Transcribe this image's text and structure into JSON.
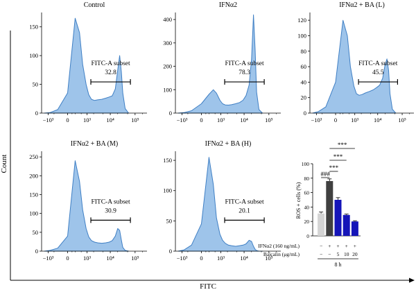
{
  "figure": {
    "y_axis_label": "Count",
    "x_axis_label": "FITC",
    "colors": {
      "histogram_fill": "#9ec4ea",
      "histogram_stroke": "#3f7fc4",
      "bar_control": "#d4d4d4",
      "bar_ifn": "#404040",
      "bar_baicalin": "#1515b8"
    }
  },
  "chart_data": [
    {
      "type": "area",
      "title": "Control",
      "x_scale": "biexponential",
      "x_ticks": [
        "−10³",
        "0",
        "10³",
        "10⁴",
        "10⁵"
      ],
      "y_ticks": [
        "0",
        "50",
        "100",
        "150"
      ],
      "ylim": [
        0,
        175
      ],
      "gate": {
        "label": "FITC-A subset",
        "value": "32.8",
        "x_range": [
          1500,
          65000
        ]
      },
      "x": [
        -1500,
        -800,
        -300,
        0,
        200,
        400,
        600,
        900,
        1200,
        1600,
        2200,
        3000,
        4500,
        6500,
        9000,
        12000,
        16000,
        20000,
        24000,
        28000,
        32000,
        40000,
        55000
      ],
      "y": [
        0,
        1,
        6,
        35,
        165,
        140,
        85,
        50,
        32,
        24,
        22,
        23,
        24,
        26,
        28,
        30,
        42,
        75,
        100,
        72,
        35,
        8,
        0
      ]
    },
    {
      "type": "area",
      "title": "IFNα2",
      "x_scale": "biexponential",
      "x_ticks": [
        "−10³",
        "0",
        "10³",
        "10⁴",
        "10⁵"
      ],
      "y_ticks": [
        "0",
        "100",
        "200",
        "300",
        "400"
      ],
      "ylim": [
        0,
        430
      ],
      "gate": {
        "label": "FITC-A subset",
        "value": "78.3",
        "x_range": [
          1500,
          65000
        ]
      },
      "x": [
        -1500,
        -800,
        -300,
        0,
        200,
        400,
        600,
        900,
        1200,
        1600,
        2200,
        3000,
        4500,
        6500,
        9000,
        12000,
        16000,
        20000,
        24000,
        28000,
        32000,
        40000,
        55000
      ],
      "y": [
        0,
        2,
        10,
        40,
        80,
        100,
        85,
        55,
        40,
        35,
        34,
        36,
        40,
        45,
        55,
        75,
        120,
        230,
        420,
        270,
        90,
        15,
        0
      ]
    },
    {
      "type": "area",
      "title": "IFNα2 + BA (L)",
      "x_scale": "biexponential",
      "x_ticks": [
        "−10³",
        "0",
        "10³",
        "10⁴",
        "10⁵"
      ],
      "y_ticks": [
        "0",
        "20",
        "40",
        "60",
        "80",
        "100",
        "120"
      ],
      "ylim": [
        0,
        130
      ],
      "gate": {
        "label": "FITC-A subset",
        "value": "45.5",
        "x_range": [
          1500,
          65000
        ]
      },
      "x": [
        -1500,
        -800,
        -300,
        0,
        200,
        400,
        600,
        900,
        1200,
        1600,
        2200,
        3000,
        4500,
        6500,
        9000,
        12000,
        16000,
        20000,
        24000,
        28000,
        32000,
        40000,
        55000
      ],
      "y": [
        0,
        2,
        8,
        40,
        120,
        100,
        60,
        35,
        25,
        23,
        24,
        26,
        28,
        30,
        33,
        36,
        45,
        62,
        70,
        55,
        25,
        5,
        0
      ]
    },
    {
      "type": "area",
      "title": "IFNα2 + BA (M)",
      "x_scale": "biexponential",
      "x_ticks": [
        "−10³",
        "0",
        "10³",
        "10⁴",
        "10⁵"
      ],
      "y_ticks": [
        "0",
        "50",
        "100",
        "150",
        "200",
        "250"
      ],
      "ylim": [
        0,
        265
      ],
      "gate": {
        "label": "FITC-A subset",
        "value": "30.9",
        "x_range": [
          1500,
          65000
        ]
      },
      "x": [
        -1500,
        -800,
        -300,
        0,
        200,
        400,
        600,
        900,
        1200,
        1600,
        2200,
        3000,
        4500,
        6500,
        9000,
        12000,
        16000,
        20000,
        24000,
        28000,
        32000,
        40000,
        55000
      ],
      "y": [
        0,
        2,
        8,
        40,
        240,
        185,
        110,
        60,
        38,
        28,
        24,
        22,
        21,
        22,
        24,
        28,
        40,
        60,
        55,
        30,
        10,
        2,
        0
      ]
    },
    {
      "type": "area",
      "title": "IFNα2 + BA (H)",
      "x_scale": "biexponential",
      "x_ticks": [
        "−10³",
        "0",
        "10³",
        "10⁴",
        "10⁵"
      ],
      "y_ticks": [
        "0",
        "50",
        "100",
        "150"
      ],
      "ylim": [
        0,
        165
      ],
      "gate": {
        "label": "FITC-A subset",
        "value": "20.1",
        "x_range": [
          1500,
          65000
        ]
      },
      "x": [
        -1500,
        -800,
        -300,
        0,
        200,
        400,
        600,
        900,
        1200,
        1600,
        2200,
        3000,
        4500,
        6500,
        9000,
        12000,
        16000,
        20000,
        24000,
        28000,
        32000,
        40000,
        55000
      ],
      "y": [
        0,
        2,
        10,
        45,
        155,
        110,
        55,
        28,
        18,
        13,
        10,
        9,
        8,
        9,
        10,
        12,
        18,
        16,
        8,
        3,
        1,
        0,
        0
      ]
    },
    {
      "type": "bar",
      "ylabel": "ROS + cells (%)",
      "y_ticks": [
        "0",
        "20",
        "40",
        "60",
        "80",
        "100"
      ],
      "ylim": [
        0,
        100
      ],
      "categories": [
        "Control",
        "IFNα2",
        "BA 5",
        "BA 10",
        "BA 20"
      ],
      "values": [
        31,
        76,
        50,
        29,
        20
      ],
      "errors": [
        2,
        3,
        3,
        1.2,
        1
      ],
      "bar_colors": [
        "#d4d4d4",
        "#404040",
        "#1515b8",
        "#1515b8",
        "#1515b8"
      ],
      "conditions": [
        {
          "label": "IFNα2 (160 ng/mL)",
          "values": [
            "−",
            "+",
            "+",
            "+",
            "+"
          ]
        },
        {
          "label": "Baicalin (μg/mL)",
          "values": [
            "−",
            "−",
            "5",
            "10",
            "20"
          ]
        }
      ],
      "time_label": "8 h",
      "significance": [
        {
          "from": 0,
          "to": 1,
          "label": "###"
        },
        {
          "from": 1,
          "to": 2,
          "label": "***"
        },
        {
          "from": 1,
          "to": 3,
          "label": "***"
        },
        {
          "from": 1,
          "to": 4,
          "label": "***"
        }
      ]
    }
  ]
}
